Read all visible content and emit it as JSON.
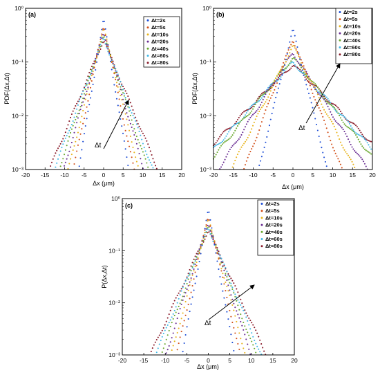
{
  "panels": [
    {
      "id": "a",
      "panel_label": "(a)",
      "ylabel": "PDF(Δx,Δt)",
      "xlabel": "Δx (μm)",
      "annotation": "Δt",
      "legend": [
        "Δt=2s",
        "Δt=5s",
        "Δt=10s",
        "Δt=20s",
        "Δt=40s",
        "Δt=60s",
        "Δt=80s"
      ]
    },
    {
      "id": "b",
      "panel_label": "(b)",
      "ylabel": "PDF(Δx,Δt)",
      "xlabel": "Δx (μm)",
      "annotation": "Δt",
      "legend": [
        "Δt=2s",
        "Δt=5s",
        "Δt=10s",
        "Δt=20s",
        "Δt=40s",
        "Δt=60s",
        "Δt=80s"
      ]
    },
    {
      "id": "c",
      "panel_label": "(c)",
      "ylabel": "P(Δx,Δt)",
      "xlabel": "Δx (μm)",
      "annotation": "Δt",
      "legend": [
        "Δt=2s",
        "Δt=5s",
        "Δt=10s",
        "Δt=20s",
        "Δt=40s",
        "Δt=60s",
        "Δt=80s"
      ]
    }
  ],
  "series_colors": [
    "#1f4fd6",
    "#d2501a",
    "#e8b41c",
    "#6b2f94",
    "#6aa82f",
    "#43b9e6",
    "#8a1c2b"
  ],
  "chart_data": [
    {
      "type": "scatter",
      "panel": "a",
      "xlim": [
        -20,
        20
      ],
      "xticks": [
        -20,
        -15,
        -10,
        -5,
        0,
        5,
        10,
        15,
        20
      ],
      "ylim": [
        0.001,
        1
      ],
      "yscale": "log",
      "ytick_labels": [
        "10⁻³",
        "10⁻²",
        "10⁻¹",
        "10⁰"
      ],
      "grid": false,
      "legend_position": "top-right",
      "series": [
        {
          "name": "Δt=2s",
          "peak": 0.62,
          "width": 1.0
        },
        {
          "name": "Δt=5s",
          "peak": 0.5,
          "width": 1.25
        },
        {
          "name": "Δt=10s",
          "peak": 0.42,
          "width": 1.5
        },
        {
          "name": "Δt=20s",
          "peak": 0.36,
          "width": 1.75
        },
        {
          "name": "Δt=40s",
          "peak": 0.31,
          "width": 2.0
        },
        {
          "name": "Δt=60s",
          "peak": 0.28,
          "width": 2.25
        },
        {
          "name": "Δt=80s",
          "peak": 0.26,
          "width": 2.5
        }
      ]
    },
    {
      "type": "scatter",
      "panel": "b",
      "xlim": [
        -20,
        20
      ],
      "xticks": [
        -20,
        -15,
        -10,
        -5,
        0,
        5,
        10,
        15,
        20
      ],
      "ylim": [
        0.001,
        1
      ],
      "yscale": "log",
      "ytick_labels": [
        "10⁻³",
        "10⁻²",
        "10⁻¹",
        "10⁰"
      ],
      "grid": false,
      "legend_position": "top-right",
      "series": [
        {
          "name": "Δt=2s",
          "peak": 0.4,
          "width": 1.45
        },
        {
          "name": "Δt=5s",
          "peak": 0.27,
          "width": 2.2
        },
        {
          "name": "Δt=10s",
          "peak": 0.2,
          "width": 2.95
        },
        {
          "name": "Δt=20s",
          "peak": 0.15,
          "width": 3.75
        },
        {
          "name": "Δt=40s",
          "peak": 0.12,
          "width": 4.7
        },
        {
          "name": "Δt=60s",
          "peak": 0.1,
          "width": 5.35
        },
        {
          "name": "Δt=80s",
          "peak": 0.09,
          "width": 5.9
        }
      ]
    },
    {
      "type": "scatter",
      "panel": "c",
      "xlim": [
        -20,
        20
      ],
      "xticks": [
        -20,
        -15,
        -10,
        -5,
        0,
        5,
        10,
        15,
        20
      ],
      "ylim": [
        0.001,
        1
      ],
      "yscale": "log",
      "ytick_labels": [
        "10⁻³",
        "10⁻²",
        "10⁻¹",
        "10⁰"
      ],
      "grid": false,
      "legend_position": "top-right",
      "series": [
        {
          "name": "Δt=2s",
          "peak": 0.6,
          "width": 0.95
        },
        {
          "name": "Δt=5s",
          "peak": 0.48,
          "width": 1.2
        },
        {
          "name": "Δt=10s",
          "peak": 0.4,
          "width": 1.45
        },
        {
          "name": "Δt=20s",
          "peak": 0.34,
          "width": 1.7
        },
        {
          "name": "Δt=40s",
          "peak": 0.3,
          "width": 1.95
        },
        {
          "name": "Δt=60s",
          "peak": 0.27,
          "width": 2.2
        },
        {
          "name": "Δt=80s",
          "peak": 0.25,
          "width": 2.45
        }
      ]
    }
  ]
}
